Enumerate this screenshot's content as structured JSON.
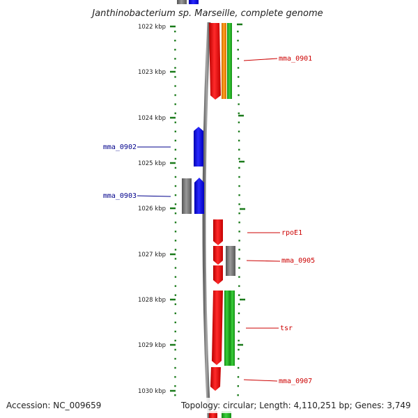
{
  "title": "Janthinobacterium sp. Marseille, complete genome",
  "footer": {
    "accession": "Accession: NC_009659",
    "topology": "Topology: circular; Length: 4,110,251 bp; Genes: 3,749"
  },
  "ruler": {
    "ticks": [
      "1022 kbp",
      "1023 kbp",
      "1024 kbp",
      "1025 kbp",
      "1026 kbp",
      "1027 kbp",
      "1028 kbp",
      "1029 kbp",
      "1030 kbp"
    ]
  },
  "gene_labels": {
    "mma_0901": "mma_0901",
    "mma_0902": "mma_0902",
    "mma_0903": "mma_0903",
    "rpoE1": "rpoE1",
    "mma_0905": "mma_0905",
    "tsr": "tsr",
    "mma_0907": "mma_0907"
  },
  "colors": {
    "forward_label": "#cc0000",
    "reverse_label": "#00008b",
    "cds_red": "#ee1111",
    "cds_blue": "#1111ee",
    "other_gray": "#808080",
    "orange": "#ff8c00",
    "green": "#22bb22",
    "ruler_green": "#1a7a1a"
  }
}
